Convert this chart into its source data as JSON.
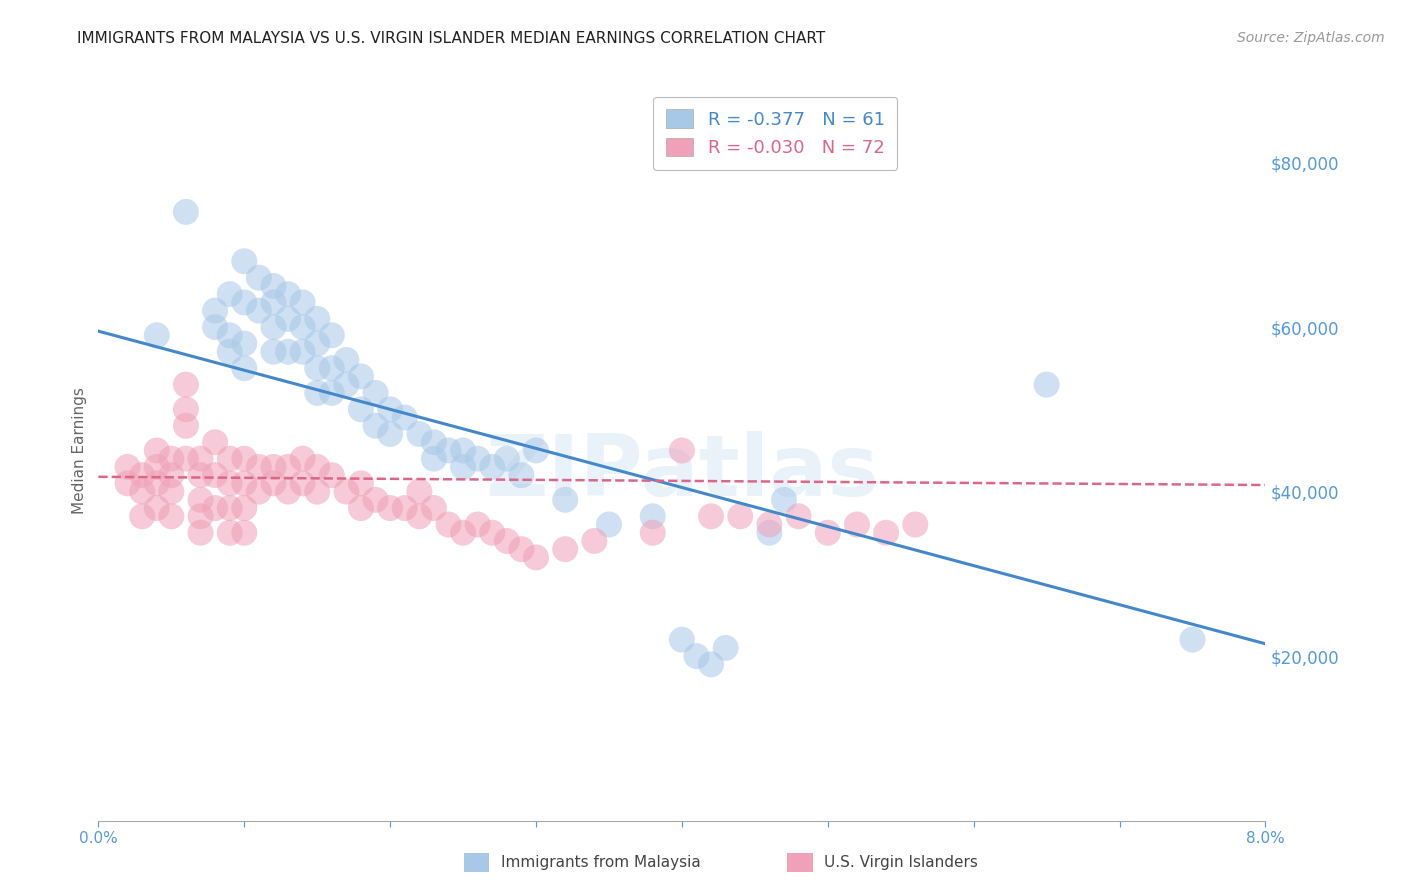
{
  "title": "IMMIGRANTS FROM MALAYSIA VS U.S. VIRGIN ISLANDER MEDIAN EARNINGS CORRELATION CHART",
  "source": "Source: ZipAtlas.com",
  "ylabel": "Median Earnings",
  "xlim": [
    0.0,
    0.08
  ],
  "ylim": [
    0,
    90000
  ],
  "blue_R": "-0.377",
  "blue_N": "61",
  "pink_R": "-0.030",
  "pink_N": "72",
  "blue_color": "#a8c8e8",
  "pink_color": "#f0a0b8",
  "blue_line_color": "#4488cc",
  "pink_line_color": "#dd6688",
  "watermark": "ZIPatlas",
  "blue_scatter_x": [
    0.004,
    0.006,
    0.008,
    0.008,
    0.009,
    0.009,
    0.009,
    0.01,
    0.01,
    0.01,
    0.01,
    0.011,
    0.011,
    0.012,
    0.012,
    0.012,
    0.012,
    0.013,
    0.013,
    0.013,
    0.014,
    0.014,
    0.014,
    0.015,
    0.015,
    0.015,
    0.015,
    0.016,
    0.016,
    0.016,
    0.017,
    0.017,
    0.018,
    0.018,
    0.019,
    0.019,
    0.02,
    0.02,
    0.021,
    0.022,
    0.023,
    0.023,
    0.024,
    0.025,
    0.025,
    0.026,
    0.027,
    0.028,
    0.029,
    0.03,
    0.032,
    0.035,
    0.038,
    0.04,
    0.041,
    0.042,
    0.043,
    0.046,
    0.047,
    0.065,
    0.075
  ],
  "blue_scatter_y": [
    59000,
    74000,
    62000,
    60000,
    64000,
    59000,
    57000,
    68000,
    63000,
    58000,
    55000,
    66000,
    62000,
    65000,
    63000,
    60000,
    57000,
    64000,
    61000,
    57000,
    63000,
    60000,
    57000,
    61000,
    58000,
    55000,
    52000,
    59000,
    55000,
    52000,
    56000,
    53000,
    54000,
    50000,
    52000,
    48000,
    50000,
    47000,
    49000,
    47000,
    46000,
    44000,
    45000,
    45000,
    43000,
    44000,
    43000,
    44000,
    42000,
    45000,
    39000,
    36000,
    37000,
    22000,
    20000,
    19000,
    21000,
    35000,
    39000,
    53000,
    22000
  ],
  "pink_scatter_x": [
    0.002,
    0.002,
    0.003,
    0.003,
    0.003,
    0.004,
    0.004,
    0.004,
    0.004,
    0.005,
    0.005,
    0.005,
    0.005,
    0.006,
    0.006,
    0.006,
    0.006,
    0.007,
    0.007,
    0.007,
    0.007,
    0.007,
    0.008,
    0.008,
    0.008,
    0.009,
    0.009,
    0.009,
    0.009,
    0.01,
    0.01,
    0.01,
    0.01,
    0.011,
    0.011,
    0.012,
    0.012,
    0.013,
    0.013,
    0.014,
    0.014,
    0.015,
    0.015,
    0.016,
    0.017,
    0.018,
    0.018,
    0.019,
    0.02,
    0.021,
    0.022,
    0.022,
    0.023,
    0.024,
    0.025,
    0.026,
    0.027,
    0.028,
    0.029,
    0.03,
    0.032,
    0.034,
    0.038,
    0.04,
    0.042,
    0.044,
    0.046,
    0.048,
    0.05,
    0.052,
    0.054,
    0.056
  ],
  "pink_scatter_y": [
    43000,
    41000,
    42000,
    40000,
    37000,
    45000,
    43000,
    41000,
    38000,
    44000,
    42000,
    40000,
    37000,
    53000,
    50000,
    48000,
    44000,
    44000,
    42000,
    39000,
    37000,
    35000,
    46000,
    42000,
    38000,
    44000,
    41000,
    38000,
    35000,
    44000,
    41000,
    38000,
    35000,
    43000,
    40000,
    43000,
    41000,
    43000,
    40000,
    44000,
    41000,
    43000,
    40000,
    42000,
    40000,
    41000,
    38000,
    39000,
    38000,
    38000,
    40000,
    37000,
    38000,
    36000,
    35000,
    36000,
    35000,
    34000,
    33000,
    32000,
    33000,
    34000,
    35000,
    45000,
    37000,
    37000,
    36000,
    37000,
    35000,
    36000,
    35000,
    36000
  ],
  "blue_trendline_x": [
    0.0,
    0.08
  ],
  "blue_trendline_y": [
    59500,
    21500
  ],
  "pink_trendline_x": [
    0.0,
    0.08
  ],
  "pink_trendline_y": [
    41800,
    40800
  ],
  "ytick_vals": [
    20000,
    40000,
    60000,
    80000
  ],
  "ytick_labels": [
    "$20,000",
    "$40,000",
    "$60,000",
    "$80,000"
  ],
  "xtick_vals": [
    0.0,
    0.01,
    0.02,
    0.03,
    0.04,
    0.05,
    0.06,
    0.07,
    0.08
  ],
  "xtick_labels": [
    "0.0%",
    "",
    "",
    "",
    "",
    "",
    "",
    "",
    "8.0%"
  ],
  "grid_color": "#cccccc",
  "background_color": "#ffffff",
  "title_fontsize": 11,
  "source_fontsize": 10,
  "ytick_color": "#5599dd",
  "xtick_color": "#5599dd",
  "axis_label_color": "#666666",
  "dot_size": 350,
  "dot_alpha": 0.55
}
